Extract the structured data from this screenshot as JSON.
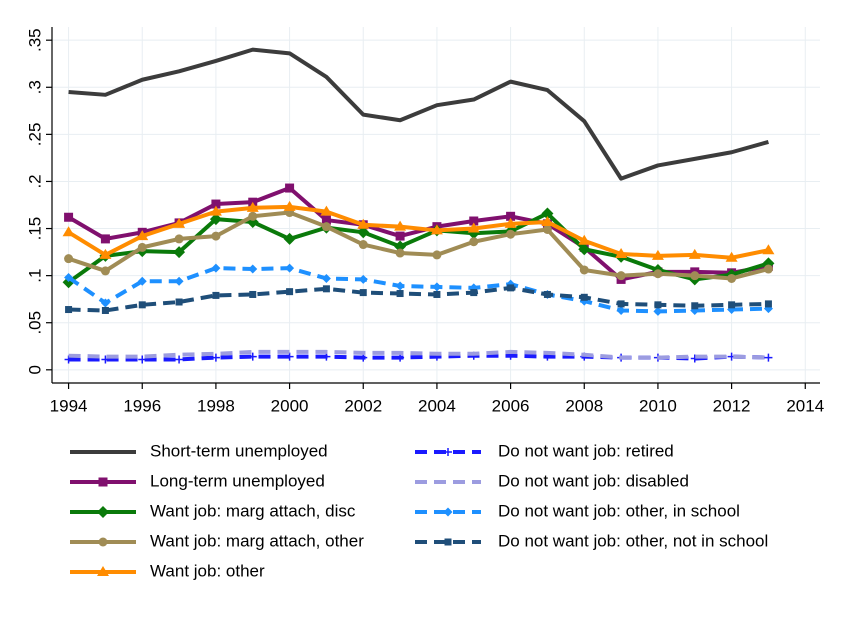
{
  "chart_data": {
    "type": "line",
    "x": [
      1994,
      1995,
      1996,
      1997,
      1998,
      1999,
      2000,
      2001,
      2002,
      2003,
      2004,
      2005,
      2006,
      2007,
      2008,
      2009,
      2010,
      2011,
      2012,
      2013
    ],
    "xlim": [
      1993.55,
      2014.4
    ],
    "xticks": [
      1994,
      1996,
      1998,
      2000,
      2002,
      2004,
      2006,
      2008,
      2010,
      2012,
      2014
    ],
    "ylim": [
      -0.014,
      0.364
    ],
    "yticks": [
      0,
      {
        "value": 0.05,
        "label": ".05"
      },
      {
        "value": 0.1,
        "label": ".1"
      },
      {
        "value": 0.15,
        "label": ".15"
      },
      {
        "value": 0.2,
        "label": ".2"
      },
      {
        "value": 0.25,
        "label": ".25"
      },
      {
        "value": 0.3,
        "label": ".3"
      },
      {
        "value": 0.35,
        "label": ".35"
      }
    ],
    "grid": true,
    "series": [
      {
        "name": "Short-term unemployed",
        "color": "#3c3c3c",
        "marker": "none",
        "dashed": false,
        "values": [
          0.295,
          0.292,
          0.308,
          0.317,
          0.328,
          0.34,
          0.336,
          0.311,
          0.271,
          0.265,
          0.281,
          0.287,
          0.306,
          0.297,
          0.264,
          0.203,
          0.217,
          0.224,
          0.231,
          0.242
        ]
      },
      {
        "name": "Long-term unemployed",
        "color": "#80106e",
        "marker": "square",
        "dashed": false,
        "values": [
          0.162,
          0.139,
          0.146,
          0.156,
          0.176,
          0.178,
          0.193,
          0.159,
          0.154,
          0.142,
          0.152,
          0.158,
          0.163,
          0.155,
          0.13,
          0.096,
          0.104,
          0.104,
          0.103,
          0.11
        ]
      },
      {
        "name": "Want job: marg attach, disc",
        "color": "#0a7a0a",
        "marker": "diamond",
        "dashed": false,
        "values": [
          0.093,
          0.121,
          0.126,
          0.125,
          0.16,
          0.157,
          0.139,
          0.151,
          0.146,
          0.131,
          0.148,
          0.145,
          0.147,
          0.166,
          0.128,
          0.12,
          0.106,
          0.096,
          0.101,
          0.113
        ]
      },
      {
        "name": "Want job: marg attach, other",
        "color": "#a08c55",
        "marker": "circle",
        "dashed": false,
        "values": [
          0.118,
          0.105,
          0.13,
          0.139,
          0.142,
          0.163,
          0.167,
          0.152,
          0.133,
          0.124,
          0.122,
          0.136,
          0.144,
          0.149,
          0.106,
          0.1,
          0.102,
          0.1,
          0.097,
          0.107
        ]
      },
      {
        "name": "Want job: other",
        "color": "#ff8c00",
        "marker": "triangle",
        "dashed": false,
        "values": [
          0.146,
          0.122,
          0.142,
          0.155,
          0.168,
          0.172,
          0.173,
          0.168,
          0.154,
          0.152,
          0.148,
          0.15,
          0.155,
          0.157,
          0.137,
          0.123,
          0.121,
          0.122,
          0.119,
          0.127
        ]
      },
      {
        "name": "Do not want job: retired",
        "color": "#1a1aff",
        "marker": "plus",
        "dashed": true,
        "values": [
          0.011,
          0.011,
          0.011,
          0.011,
          0.013,
          0.014,
          0.014,
          0.014,
          0.013,
          0.013,
          0.014,
          0.015,
          0.015,
          0.014,
          0.014,
          0.013,
          0.013,
          0.012,
          0.014,
          0.013
        ]
      },
      {
        "name": "Do not want job: disabled",
        "color": "#9c9ce0",
        "marker": "none",
        "dashed": true,
        "values": [
          0.015,
          0.014,
          0.014,
          0.016,
          0.017,
          0.019,
          0.019,
          0.019,
          0.018,
          0.018,
          0.017,
          0.017,
          0.019,
          0.018,
          0.016,
          0.013,
          0.013,
          0.014,
          0.014,
          0.013
        ]
      },
      {
        "name": "Do not want job: other, in school",
        "color": "#1e90ff",
        "marker": "smalldiamond",
        "dashed": true,
        "values": [
          0.098,
          0.071,
          0.094,
          0.094,
          0.108,
          0.107,
          0.108,
          0.097,
          0.096,
          0.089,
          0.088,
          0.087,
          0.091,
          0.08,
          0.073,
          0.063,
          0.062,
          0.063,
          0.064,
          0.065
        ]
      },
      {
        "name": "Do not want job: other, not in school",
        "color": "#1f4e79",
        "marker": "smallsquare",
        "dashed": true,
        "values": [
          0.064,
          0.063,
          0.069,
          0.072,
          0.079,
          0.08,
          0.083,
          0.086,
          0.082,
          0.081,
          0.08,
          0.082,
          0.087,
          0.08,
          0.077,
          0.07,
          0.069,
          0.068,
          0.069,
          0.07
        ]
      }
    ]
  }
}
